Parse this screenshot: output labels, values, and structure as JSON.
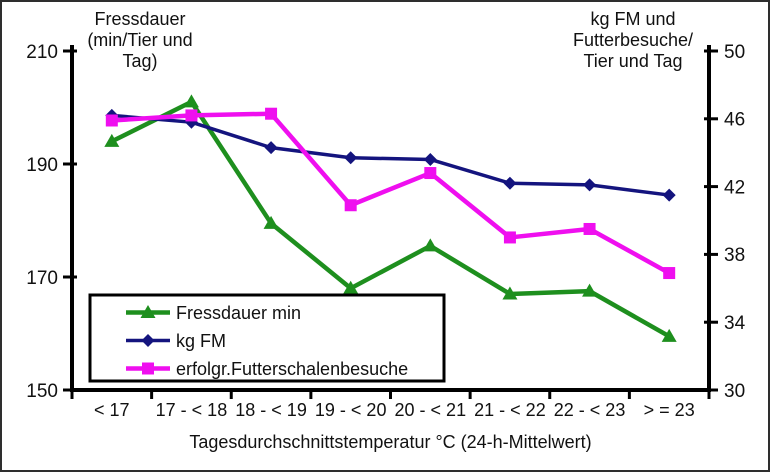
{
  "window": {
    "background": "#ffffff",
    "frame_border_color": "#2e2e2e"
  },
  "chart_data": {
    "type": "line",
    "title": "",
    "categories": [
      "< 17",
      "17 - < 18",
      "18 - < 19",
      "19 - < 20",
      "20 - < 21",
      "21 - < 22",
      "22 - < 23",
      "> = 23"
    ],
    "xlabel": "Tagesdurchschnittstemperatur °C (24-h-Mittelwert)",
    "grid": false,
    "axes": {
      "left": {
        "title": "Fressdauer (min/Tier und Tag)",
        "title_lines": [
          "Fressdauer",
          "(min/Tier und",
          "Tag)"
        ],
        "ticks": [
          210,
          190,
          170,
          150
        ],
        "range": [
          150,
          210
        ]
      },
      "right": {
        "title": "kg FM und Futterbesuche/Tier und Tag",
        "title_lines": [
          "kg FM und",
          "Futterbesuche/",
          "Tier und Tag"
        ],
        "ticks": [
          50,
          46,
          42,
          38,
          34,
          30
        ],
        "range": [
          30,
          50
        ]
      }
    },
    "legend": {
      "position": "inside-bottom-left",
      "border": true
    },
    "series": [
      {
        "name": "Fressdauer min",
        "axis": "left",
        "color": "#1e8f1e",
        "marker": "triangle",
        "values": [
          194,
          201,
          179.5,
          168,
          175.5,
          167,
          167.5,
          159.5
        ]
      },
      {
        "name": "kg FM",
        "axis": "right",
        "color": "#14147e",
        "marker": "diamond",
        "values": [
          46.2,
          45.8,
          44.3,
          43.7,
          43.6,
          42.2,
          42.1,
          41.5
        ]
      },
      {
        "name": "erfolgr.Futterschalenbesuche",
        "axis": "right",
        "color": "#ef0fef",
        "marker": "square",
        "values": [
          45.9,
          46.2,
          46.3,
          40.9,
          42.8,
          39.0,
          39.5,
          36.9
        ]
      }
    ]
  }
}
